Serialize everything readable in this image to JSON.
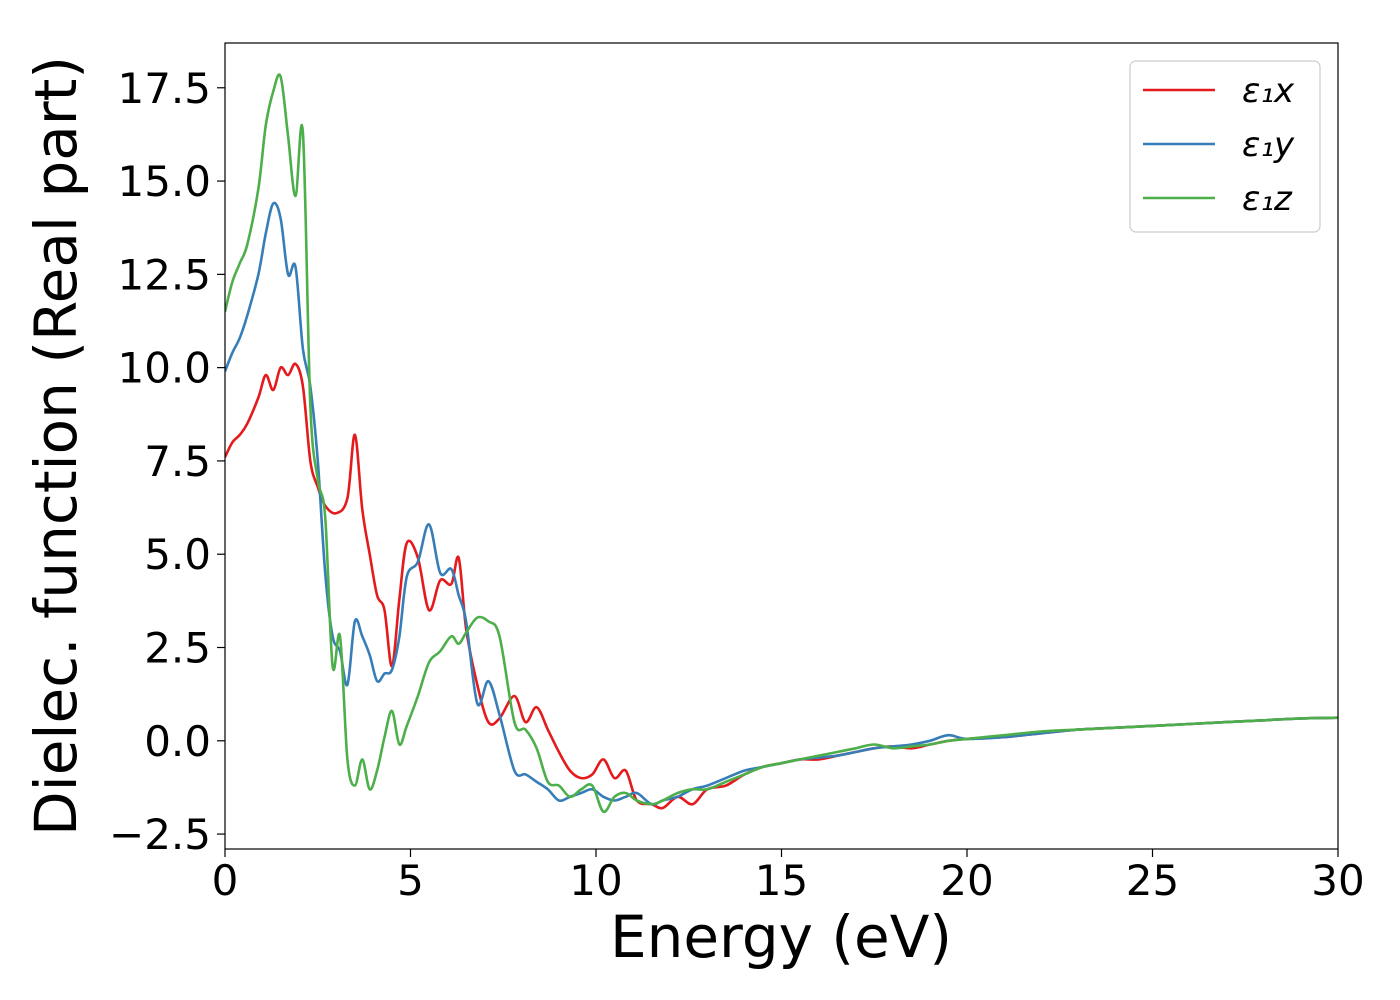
{
  "chart_data": {
    "type": "line",
    "title": "",
    "xlabel": "Energy (eV)",
    "ylabel": "Dielec. function (Real part)",
    "xlim": [
      0,
      30
    ],
    "ylim": [
      -2.9,
      18.7
    ],
    "xticks": [
      0,
      5,
      10,
      15,
      20,
      25,
      30
    ],
    "xtick_labels": [
      "0",
      "5",
      "10",
      "15",
      "20",
      "25",
      "30"
    ],
    "yticks": [
      -2.5,
      0.0,
      2.5,
      5.0,
      7.5,
      10.0,
      12.5,
      15.0,
      17.5
    ],
    "ytick_labels": [
      "−2.5",
      "0.0",
      "2.5",
      "5.0",
      "7.5",
      "10.0",
      "12.5",
      "15.0",
      "17.5"
    ],
    "grid": false,
    "legend_position": "top-right",
    "series": [
      {
        "name": "ε₁x",
        "color": "#e41a1c",
        "x": [
          0,
          0.2,
          0.4,
          0.6,
          0.9,
          1.1,
          1.3,
          1.5,
          1.7,
          1.9,
          2.1,
          2.3,
          2.5,
          2.7,
          3.0,
          3.3,
          3.5,
          3.7,
          3.9,
          4.1,
          4.3,
          4.5,
          4.7,
          4.9,
          5.2,
          5.5,
          5.8,
          6.1,
          6.3,
          6.5,
          6.8,
          7.1,
          7.4,
          7.8,
          8.1,
          8.4,
          8.7,
          9.0,
          9.3,
          9.6,
          9.9,
          10.2,
          10.5,
          10.8,
          11.1,
          11.5,
          11.8,
          12.2,
          12.6,
          13.0,
          13.5,
          14.0,
          14.5,
          15.0,
          15.5,
          16.0,
          16.5,
          17.0,
          17.5,
          18.0,
          18.5,
          19.0,
          19.5,
          20.0,
          21.0,
          22.0,
          23.0,
          24.0,
          25.0,
          26.0,
          27.0,
          28.0,
          29.0,
          30.0
        ],
        "y": [
          7.6,
          8.0,
          8.2,
          8.5,
          9.2,
          9.8,
          9.4,
          10.0,
          9.8,
          10.1,
          9.5,
          7.5,
          6.8,
          6.3,
          6.1,
          6.5,
          8.2,
          6.2,
          5.0,
          3.9,
          3.5,
          2.0,
          3.8,
          5.3,
          4.9,
          3.5,
          4.3,
          4.2,
          4.9,
          3.0,
          1.5,
          0.5,
          0.6,
          1.2,
          0.5,
          0.9,
          0.3,
          -0.3,
          -0.8,
          -1.0,
          -0.9,
          -0.5,
          -1.0,
          -0.8,
          -1.6,
          -1.7,
          -1.8,
          -1.5,
          -1.7,
          -1.3,
          -1.2,
          -0.9,
          -0.7,
          -0.6,
          -0.5,
          -0.5,
          -0.4,
          -0.3,
          -0.2,
          -0.15,
          -0.2,
          -0.1,
          0.0,
          0.05,
          0.1,
          0.2,
          0.3,
          0.35,
          0.4,
          0.45,
          0.5,
          0.55,
          0.6,
          0.62
        ]
      },
      {
        "name": "ε₁y",
        "color": "#377eb8",
        "x": [
          0,
          0.2,
          0.4,
          0.6,
          0.9,
          1.1,
          1.3,
          1.5,
          1.7,
          1.9,
          2.1,
          2.3,
          2.5,
          2.7,
          2.9,
          3.1,
          3.3,
          3.5,
          3.7,
          3.9,
          4.1,
          4.3,
          4.5,
          4.7,
          4.9,
          5.2,
          5.5,
          5.8,
          6.1,
          6.3,
          6.5,
          6.8,
          7.1,
          7.4,
          7.8,
          8.1,
          8.4,
          8.7,
          9.0,
          9.3,
          9.6,
          9.9,
          10.2,
          10.5,
          10.8,
          11.1,
          11.5,
          11.8,
          12.2,
          12.6,
          13.0,
          13.5,
          14.0,
          14.5,
          15.0,
          15.5,
          16.0,
          16.5,
          17.0,
          17.5,
          18.0,
          18.5,
          19.0,
          19.5,
          20.0,
          21.0,
          22.0,
          23.0,
          24.0,
          25.0,
          26.0,
          27.0,
          28.0,
          29.0,
          30.0
        ],
        "y": [
          9.9,
          10.4,
          10.8,
          11.4,
          12.5,
          13.6,
          14.4,
          14.0,
          12.5,
          12.7,
          10.5,
          9.5,
          7.5,
          4.5,
          2.8,
          2.4,
          1.5,
          3.2,
          2.8,
          2.3,
          1.6,
          1.8,
          1.9,
          2.8,
          4.4,
          4.8,
          5.8,
          4.5,
          4.6,
          3.9,
          3.2,
          1.0,
          1.6,
          0.7,
          -0.8,
          -0.9,
          -1.1,
          -1.3,
          -1.6,
          -1.5,
          -1.4,
          -1.3,
          -1.5,
          -1.6,
          -1.5,
          -1.4,
          -1.7,
          -1.6,
          -1.5,
          -1.3,
          -1.2,
          -1.0,
          -0.8,
          -0.7,
          -0.6,
          -0.5,
          -0.45,
          -0.4,
          -0.3,
          -0.2,
          -0.15,
          -0.1,
          0.0,
          0.15,
          0.05,
          0.1,
          0.2,
          0.3,
          0.35,
          0.4,
          0.45,
          0.5,
          0.55,
          0.6,
          0.62
        ]
      },
      {
        "name": "ε₁z",
        "color": "#4daf4a",
        "x": [
          0,
          0.2,
          0.4,
          0.6,
          0.9,
          1.1,
          1.3,
          1.5,
          1.7,
          1.9,
          2.1,
          2.3,
          2.5,
          2.7,
          2.9,
          3.1,
          3.3,
          3.5,
          3.7,
          3.9,
          4.1,
          4.3,
          4.5,
          4.7,
          4.9,
          5.2,
          5.5,
          5.8,
          6.1,
          6.3,
          6.5,
          6.8,
          7.1,
          7.4,
          7.8,
          8.1,
          8.4,
          8.7,
          9.0,
          9.3,
          9.6,
          9.9,
          10.2,
          10.5,
          10.8,
          11.1,
          11.5,
          11.8,
          12.2,
          12.6,
          13.0,
          13.5,
          14.0,
          14.5,
          15.0,
          15.5,
          16.0,
          16.5,
          17.0,
          17.5,
          18.0,
          18.5,
          19.0,
          19.5,
          20.0,
          21.0,
          22.0,
          23.0,
          24.0,
          25.0,
          26.0,
          27.0,
          28.0,
          29.0,
          30.0
        ],
        "y": [
          11.5,
          12.3,
          12.8,
          13.3,
          14.8,
          16.5,
          17.4,
          17.8,
          16.2,
          14.6,
          16.3,
          9.0,
          7.0,
          6.0,
          2.0,
          2.8,
          -0.5,
          -1.2,
          -0.5,
          -1.3,
          -0.8,
          0.1,
          0.8,
          -0.1,
          0.4,
          1.2,
          2.1,
          2.4,
          2.8,
          2.6,
          2.9,
          3.3,
          3.2,
          2.8,
          0.5,
          0.3,
          -0.2,
          -1.1,
          -1.2,
          -1.5,
          -1.3,
          -1.2,
          -1.9,
          -1.5,
          -1.4,
          -1.6,
          -1.7,
          -1.6,
          -1.4,
          -1.3,
          -1.3,
          -1.1,
          -0.9,
          -0.7,
          -0.6,
          -0.5,
          -0.4,
          -0.3,
          -0.2,
          -0.1,
          -0.2,
          -0.15,
          -0.1,
          0.0,
          0.05,
          0.15,
          0.25,
          0.3,
          0.35,
          0.4,
          0.45,
          0.5,
          0.55,
          0.6,
          0.62
        ]
      }
    ]
  }
}
